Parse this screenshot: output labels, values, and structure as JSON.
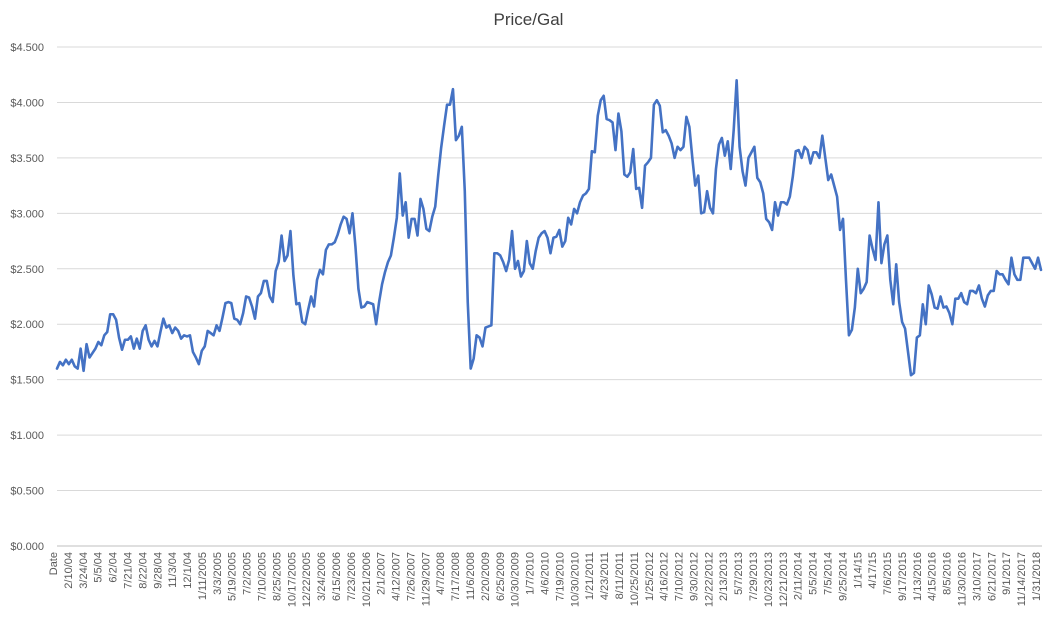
{
  "chart_data": {
    "type": "line",
    "title": "Price/Gal",
    "xlabel": "",
    "ylabel": "",
    "ylim": [
      0,
      4.5
    ],
    "yticks": [
      "$0.000",
      "$0.500",
      "$1.000",
      "$1.500",
      "$2.000",
      "$2.500",
      "$3.000",
      "$3.500",
      "$4.000",
      "$4.500"
    ],
    "xticks": [
      "Date",
      "2/10/04",
      "3/24/04",
      "5/5/04",
      "6/2/04",
      "7/21/04",
      "8/22/04",
      "9/28/04",
      "11/3/04",
      "12/1/04",
      "1/11/2005",
      "3/3/2005",
      "5/19/2005",
      "7/2/2005",
      "7/10/2005",
      "8/25/2005",
      "10/17/2005",
      "12/22/2005",
      "3/24/2006",
      "6/15/2006",
      "7/23/2006",
      "10/21/2006",
      "2/1/2007",
      "4/12/2007",
      "7/26/2007",
      "11/29/2007",
      "4/7/2008",
      "7/17/2008",
      "11/6/2008",
      "2/20/2009",
      "6/25/2009",
      "10/30/2009",
      "1/7/2010",
      "4/6/2010",
      "7/19/2010",
      "10/30/2010",
      "1/21/2011",
      "4/23/2011",
      "8/11/2011",
      "10/25/2011",
      "1/25/2012",
      "4/16/2012",
      "7/10/2012",
      "9/30/2012",
      "12/22/2012",
      "2/13/2013",
      "5/7/2013",
      "7/29/2013",
      "10/23/2013",
      "12/21/2013",
      "2/11/2014",
      "5/5/2014",
      "7/5/2014",
      "9/25/2014",
      "1/14/15",
      "4/17/15",
      "7/6/2015",
      "9/17/2015",
      "1/13/2016",
      "4/15/2016",
      "8/5/2016",
      "11/30/2016",
      "3/10/2017",
      "6/21/2017",
      "9/1/2017",
      "11/14/2017",
      "1/31/2018"
    ],
    "grid": true,
    "series": [
      {
        "color": "#4472c4",
        "values": [
          1.6,
          1.66,
          1.63,
          1.68,
          1.64,
          1.68,
          1.62,
          1.6,
          1.78,
          1.58,
          1.82,
          1.7,
          1.74,
          1.78,
          1.84,
          1.81,
          1.9,
          1.93,
          2.09,
          2.09,
          2.04,
          1.88,
          1.77,
          1.86,
          1.86,
          1.89,
          1.78,
          1.87,
          1.78,
          1.94,
          1.99,
          1.86,
          1.8,
          1.85,
          1.8,
          1.93,
          2.05,
          1.97,
          1.99,
          1.92,
          1.97,
          1.94,
          1.87,
          1.9,
          1.89,
          1.9,
          1.75,
          1.7,
          1.64,
          1.76,
          1.8,
          1.94,
          1.92,
          1.9,
          1.99,
          1.94,
          2.06,
          2.19,
          2.2,
          2.19,
          2.05,
          2.04,
          2.0,
          2.1,
          2.25,
          2.24,
          2.16,
          2.05,
          2.25,
          2.28,
          2.39,
          2.39,
          2.25,
          2.2,
          2.48,
          2.56,
          2.8,
          2.57,
          2.62,
          2.84,
          2.44,
          2.18,
          2.19,
          2.02,
          2.0,
          2.13,
          2.25,
          2.16,
          2.4,
          2.49,
          2.45,
          2.67,
          2.72,
          2.72,
          2.74,
          2.81,
          2.9,
          2.97,
          2.95,
          2.82,
          3.0,
          2.7,
          2.32,
          2.15,
          2.16,
          2.2,
          2.19,
          2.18,
          2.0,
          2.2,
          2.36,
          2.47,
          2.56,
          2.62,
          2.78,
          2.96,
          3.36,
          2.98,
          3.1,
          2.78,
          2.95,
          2.95,
          2.8,
          3.13,
          3.04,
          2.86,
          2.84,
          2.97,
          3.06,
          3.34,
          3.59,
          3.79,
          3.98,
          3.98,
          4.12,
          3.66,
          3.7,
          3.78,
          3.2,
          2.2,
          1.6,
          1.69,
          1.9,
          1.88,
          1.8,
          1.97,
          1.98,
          1.99,
          2.64,
          2.64,
          2.62,
          2.56,
          2.48,
          2.58,
          2.84,
          2.5,
          2.57,
          2.43,
          2.48,
          2.75,
          2.55,
          2.5,
          2.66,
          2.78,
          2.82,
          2.84,
          2.78,
          2.64,
          2.78,
          2.79,
          2.85,
          2.7,
          2.75,
          2.96,
          2.9,
          3.04,
          3.0,
          3.1,
          3.16,
          3.18,
          3.22,
          3.56,
          3.55,
          3.88,
          4.02,
          4.06,
          3.85,
          3.84,
          3.82,
          3.57,
          3.9,
          3.74,
          3.35,
          3.33,
          3.37,
          3.58,
          3.22,
          3.23,
          3.05,
          3.43,
          3.46,
          3.5,
          3.98,
          4.02,
          3.97,
          3.73,
          3.75,
          3.7,
          3.63,
          3.5,
          3.6,
          3.57,
          3.6,
          3.87,
          3.78,
          3.5,
          3.25,
          3.34,
          3.0,
          3.01,
          3.2,
          3.05,
          3.0,
          3.4,
          3.62,
          3.68,
          3.52,
          3.65,
          3.4,
          3.75,
          4.2,
          3.6,
          3.38,
          3.25,
          3.5,
          3.55,
          3.6,
          3.32,
          3.28,
          3.18,
          2.95,
          2.92,
          2.85,
          3.1,
          2.98,
          3.1,
          3.1,
          3.08,
          3.15,
          3.33,
          3.56,
          3.57,
          3.5,
          3.6,
          3.57,
          3.45,
          3.55,
          3.55,
          3.5,
          3.7,
          3.5,
          3.3,
          3.35,
          3.25,
          3.15,
          2.85,
          2.95,
          2.4,
          1.9,
          1.95,
          2.15,
          2.5,
          2.28,
          2.32,
          2.38,
          2.8,
          2.68,
          2.58,
          3.1,
          2.55,
          2.72,
          2.8,
          2.4,
          2.18,
          2.54,
          2.2,
          2.02,
          1.96,
          1.75,
          1.54,
          1.56,
          1.88,
          1.9,
          2.18,
          2.0,
          2.35,
          2.27,
          2.15,
          2.14,
          2.25,
          2.15,
          2.16,
          2.1,
          2.0,
          2.23,
          2.23,
          2.28,
          2.2,
          2.18,
          2.3,
          2.3,
          2.28,
          2.35,
          2.23,
          2.16,
          2.26,
          2.3,
          2.3,
          2.48,
          2.45,
          2.45,
          2.4,
          2.36,
          2.6,
          2.45,
          2.4,
          2.4,
          2.6,
          2.6,
          2.6,
          2.55,
          2.5,
          2.6,
          2.49
        ]
      }
    ]
  }
}
